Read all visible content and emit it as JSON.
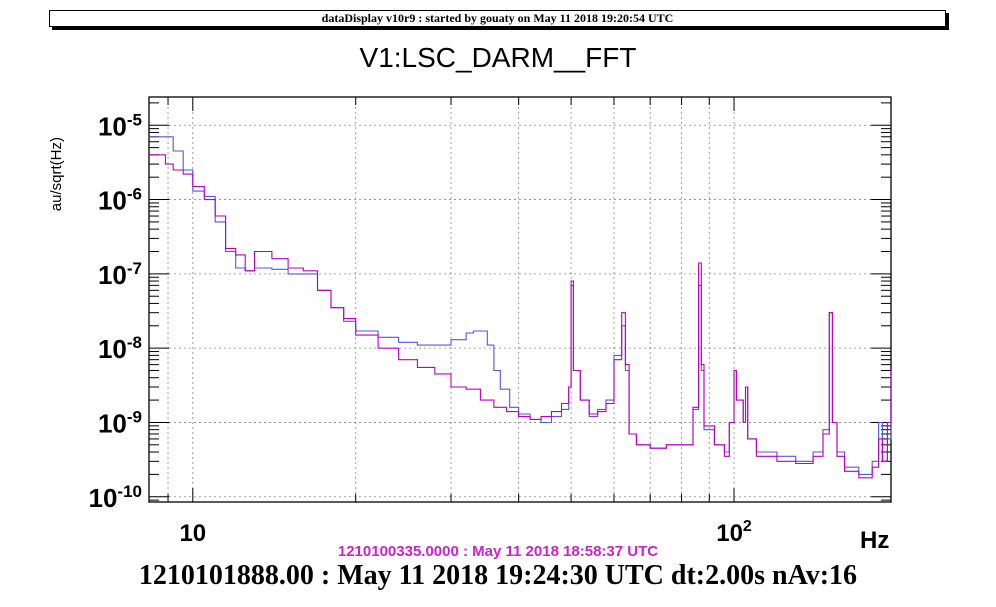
{
  "banner": "dataDisplay v10r9 : started by gouaty on May 11 2018 19:20:54 UTC",
  "ref_timestamp": "1210100335.0000 : May 11 2018 18:58:37 UTC",
  "footer": "1210101888.00 : May 11 2018 19:24:30 UTC dt:2.00s nAv:16",
  "chart_data": {
    "type": "line",
    "title": "V1:LSC_DARM__FFT",
    "ylabel": "au/sqrt(Hz)",
    "xlabel": "Hz",
    "x_scale": "log",
    "y_scale": "log",
    "xlim": [
      8.3,
      195
    ],
    "ylim": [
      8.5e-11,
      2.4e-05
    ],
    "grid": true,
    "x_ticks": [
      {
        "value": 10,
        "base": "10",
        "exp": ""
      },
      {
        "value": 100,
        "base": "10",
        "exp": "2"
      }
    ],
    "y_ticks": [
      {
        "value": 1e-10,
        "base": "10",
        "exp": "-10"
      },
      {
        "value": 1e-09,
        "base": "10",
        "exp": "-9"
      },
      {
        "value": 1e-08,
        "base": "10",
        "exp": "-8"
      },
      {
        "value": 1e-07,
        "base": "10",
        "exp": "-7"
      },
      {
        "value": 1e-06,
        "base": "10",
        "exp": "-6"
      },
      {
        "value": 1e-05,
        "base": "10",
        "exp": "-5"
      }
    ],
    "series": [
      {
        "color": "#5555dd",
        "points": [
          [
            8.3,
            7e-06
          ],
          [
            8.9,
            7e-06
          ],
          [
            9.2,
            4.5e-06
          ],
          [
            9.6,
            2.5e-06
          ],
          [
            10.0,
            1.3e-06
          ],
          [
            10.5,
            1.1e-06
          ],
          [
            11.0,
            5e-07
          ],
          [
            11.5,
            2e-07
          ],
          [
            12.0,
            1.2e-07
          ],
          [
            12.5,
            1.1e-07
          ],
          [
            13.0,
            1.2e-07
          ],
          [
            14.0,
            1.15e-07
          ],
          [
            15.0,
            1e-07
          ],
          [
            16.0,
            1e-07
          ],
          [
            17.0,
            6e-08
          ],
          [
            18.0,
            3.5e-08
          ],
          [
            19.0,
            2.3e-08
          ],
          [
            20.0,
            1.7e-08
          ],
          [
            22.0,
            1.4e-08
          ],
          [
            24.0,
            1.2e-08
          ],
          [
            26.0,
            1.1e-08
          ],
          [
            28.0,
            1.1e-08
          ],
          [
            30.0,
            1.3e-08
          ],
          [
            32.0,
            1.6e-08
          ],
          [
            33.0,
            1.7e-08
          ],
          [
            34.0,
            1.7e-08
          ],
          [
            35.0,
            1.1e-08
          ],
          [
            36.0,
            5e-09
          ],
          [
            37.0,
            2.8e-09
          ],
          [
            38.5,
            1.6e-09
          ],
          [
            40.0,
            1.3e-09
          ],
          [
            42.0,
            1.1e-09
          ],
          [
            44.0,
            1e-09
          ],
          [
            46.0,
            1.2e-09
          ],
          [
            48.0,
            1.5e-09
          ],
          [
            49.5,
            3e-09
          ],
          [
            50.0,
            7e-08
          ],
          [
            50.5,
            5e-09
          ],
          [
            52.0,
            2e-09
          ],
          [
            54.0,
            1.2e-09
          ],
          [
            56.0,
            1.5e-09
          ],
          [
            58.0,
            2e-09
          ],
          [
            60.0,
            8e-09
          ],
          [
            62.0,
            2e-08
          ],
          [
            63.0,
            5e-09
          ],
          [
            64.0,
            7e-10
          ],
          [
            66.0,
            5e-10
          ],
          [
            70.0,
            4.5e-10
          ],
          [
            75.0,
            5e-10
          ],
          [
            80.0,
            5e-10
          ],
          [
            84.0,
            1.5e-09
          ],
          [
            86.0,
            7e-08
          ],
          [
            87.0,
            5e-09
          ],
          [
            88.0,
            8e-10
          ],
          [
            92.0,
            5e-10
          ],
          [
            96.0,
            4e-10
          ],
          [
            98.0,
            1e-09
          ],
          [
            100.0,
            5e-09
          ],
          [
            101.0,
            2e-09
          ],
          [
            104.0,
            1e-09
          ],
          [
            105.0,
            3e-09
          ],
          [
            106.0,
            6e-10
          ],
          [
            110.0,
            4e-10
          ],
          [
            120.0,
            3.5e-10
          ],
          [
            130.0,
            3e-10
          ],
          [
            140.0,
            4e-10
          ],
          [
            146.0,
            8e-10
          ],
          [
            150.0,
            3e-08
          ],
          [
            152.0,
            1e-09
          ],
          [
            155.0,
            4e-10
          ],
          [
            160.0,
            2.5e-10
          ],
          [
            170.0,
            2e-10
          ],
          [
            180.0,
            3e-10
          ],
          [
            185.0,
            1e-09
          ],
          [
            188.0,
            3e-10
          ],
          [
            192.0,
            6e-10
          ],
          [
            195.0,
            5e-09
          ]
        ]
      },
      {
        "color": "#bb00bb",
        "points": [
          [
            8.3,
            4e-06
          ],
          [
            8.9,
            3e-06
          ],
          [
            9.2,
            2.5e-06
          ],
          [
            9.6,
            2.2e-06
          ],
          [
            10.0,
            1.5e-06
          ],
          [
            10.5,
            1e-06
          ],
          [
            11.0,
            6e-07
          ],
          [
            11.5,
            2.2e-07
          ],
          [
            12.0,
            1.8e-07
          ],
          [
            12.5,
            1.1e-07
          ],
          [
            13.0,
            2e-07
          ],
          [
            14.0,
            1.6e-07
          ],
          [
            15.0,
            1.2e-07
          ],
          [
            16.0,
            1.1e-07
          ],
          [
            17.0,
            6e-08
          ],
          [
            18.0,
            3.5e-08
          ],
          [
            19.0,
            2.5e-08
          ],
          [
            20.0,
            1.5e-08
          ],
          [
            22.0,
            1e-08
          ],
          [
            24.0,
            7e-09
          ],
          [
            26.0,
            5.5e-09
          ],
          [
            28.0,
            4.5e-09
          ],
          [
            30.0,
            3e-09
          ],
          [
            32.0,
            2.8e-09
          ],
          [
            34.0,
            2e-09
          ],
          [
            36.0,
            1.6e-09
          ],
          [
            38.0,
            1.4e-09
          ],
          [
            40.0,
            1.2e-09
          ],
          [
            42.0,
            1.1e-09
          ],
          [
            44.0,
            1.2e-09
          ],
          [
            46.0,
            1.4e-09
          ],
          [
            48.0,
            1.8e-09
          ],
          [
            49.5,
            3e-09
          ],
          [
            50.0,
            8e-08
          ],
          [
            50.5,
            5e-09
          ],
          [
            52.0,
            2e-09
          ],
          [
            54.0,
            1.3e-09
          ],
          [
            56.0,
            1.4e-09
          ],
          [
            58.0,
            1.8e-09
          ],
          [
            60.0,
            7e-09
          ],
          [
            62.0,
            3e-08
          ],
          [
            63.0,
            6e-09
          ],
          [
            64.0,
            7e-10
          ],
          [
            66.0,
            5e-10
          ],
          [
            70.0,
            4.5e-10
          ],
          [
            75.0,
            5e-10
          ],
          [
            80.0,
            5e-10
          ],
          [
            84.0,
            1.6e-09
          ],
          [
            86.0,
            1.4e-07
          ],
          [
            87.0,
            6e-09
          ],
          [
            88.0,
            9e-10
          ],
          [
            92.0,
            5e-10
          ],
          [
            96.0,
            3.5e-10
          ],
          [
            98.0,
            1e-09
          ],
          [
            100.0,
            5e-09
          ],
          [
            101.0,
            2e-09
          ],
          [
            104.0,
            1e-09
          ],
          [
            105.0,
            3e-09
          ],
          [
            106.0,
            6e-10
          ],
          [
            110.0,
            3.5e-10
          ],
          [
            120.0,
            3e-10
          ],
          [
            130.0,
            2.8e-10
          ],
          [
            140.0,
            3.5e-10
          ],
          [
            146.0,
            7e-10
          ],
          [
            150.0,
            3e-08
          ],
          [
            152.0,
            1e-09
          ],
          [
            155.0,
            3.5e-10
          ],
          [
            160.0,
            2.2e-10
          ],
          [
            170.0,
            1.8e-10
          ],
          [
            180.0,
            2.5e-10
          ],
          [
            185.0,
            6e-10
          ],
          [
            188.0,
            3e-10
          ],
          [
            192.0,
            1e-09
          ],
          [
            195.0,
            5e-09
          ]
        ]
      }
    ]
  }
}
